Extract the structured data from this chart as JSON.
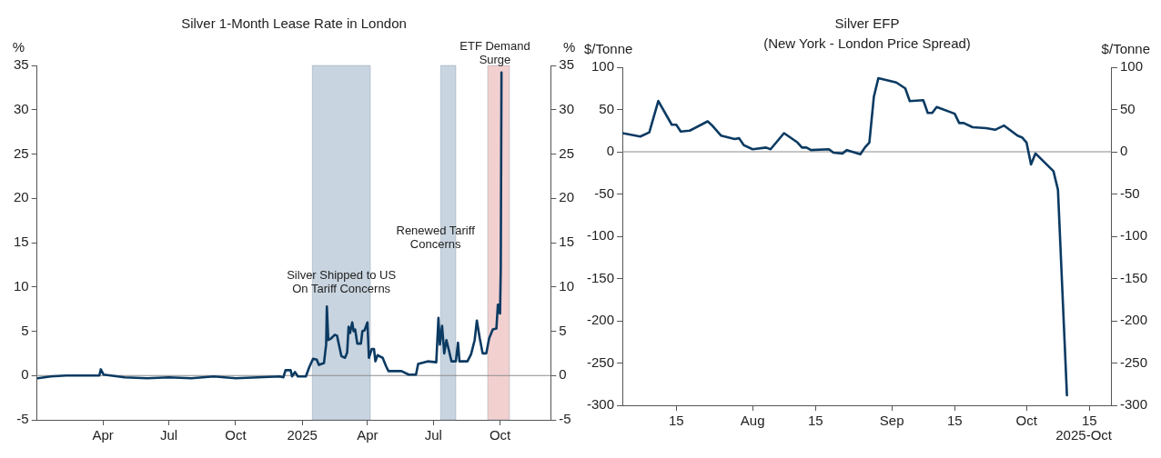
{
  "chart_data": [
    {
      "type": "line",
      "title": "Silver 1-Month Lease Rate in London",
      "ylabel": "%",
      "y2label": "%",
      "x": [
        "2024-01-02",
        "2024-01-20",
        "2024-02-10",
        "2024-03-10",
        "2024-03-27",
        "2024-03-29",
        "2024-04-02",
        "2024-05-01",
        "2024-06-01",
        "2024-07-01",
        "2024-08-01",
        "2024-09-01",
        "2024-10-01",
        "2024-11-01",
        "2024-12-01",
        "2024-12-06",
        "2024-12-09",
        "2024-12-16",
        "2024-12-18",
        "2024-12-22",
        "2024-12-26",
        "2025-01-06",
        "2025-01-11",
        "2025-01-16",
        "2025-01-21",
        "2025-01-24",
        "2025-01-31",
        "2025-02-03",
        "2025-02-04",
        "2025-02-06",
        "2025-02-10",
        "2025-02-15",
        "2025-02-18",
        "2025-02-24",
        "2025-03-01",
        "2025-03-04",
        "2025-03-06",
        "2025-03-08",
        "2025-03-11",
        "2025-03-13",
        "2025-03-15",
        "2025-03-18",
        "2025-03-23",
        "2025-03-25",
        "2025-03-28",
        "2025-04-01",
        "2025-04-03",
        "2025-04-07",
        "2025-04-10",
        "2025-04-12",
        "2025-04-15",
        "2025-04-22",
        "2025-04-27",
        "2025-04-30",
        "2025-05-18",
        "2025-05-28",
        "2025-06-07",
        "2025-06-10",
        "2025-06-23",
        "2025-07-05",
        "2025-07-08",
        "2025-07-10",
        "2025-07-13",
        "2025-07-16",
        "2025-07-19",
        "2025-07-22",
        "2025-07-26",
        "2025-08-01",
        "2025-08-04",
        "2025-08-06",
        "2025-08-17",
        "2025-08-22",
        "2025-08-27",
        "2025-08-30",
        "2025-09-03",
        "2025-09-07",
        "2025-09-12",
        "2025-09-16",
        "2025-09-21",
        "2025-09-26",
        "2025-09-28",
        "2025-09-29",
        "2025-10-01",
        "2025-10-02",
        "2025-10-03"
      ],
      "series": [
        {
          "color": "#0b3a62",
          "values": [
            -0.3,
            -0.1,
            0.0,
            0.0,
            0.0,
            0.7,
            0.1,
            -0.2,
            -0.3,
            -0.2,
            -0.3,
            -0.1,
            -0.3,
            -0.2,
            -0.1,
            -0.2,
            0.6,
            0.6,
            -0.1,
            0.4,
            -0.1,
            -0.1,
            1.0,
            1.9,
            1.8,
            1.2,
            1.4,
            3.5,
            7.8,
            4.0,
            4.2,
            4.6,
            4.5,
            2.2,
            2.0,
            2.6,
            5.5,
            4.8,
            6.0,
            5.0,
            5.2,
            3.6,
            3.6,
            5.0,
            5.1,
            6.0,
            2.0,
            3.0,
            3.0,
            1.6,
            2.3,
            2.0,
            1.0,
            0.5,
            0.5,
            0.1,
            0.1,
            1.3,
            1.6,
            1.5,
            6.5,
            3.5,
            5.6,
            2.5,
            4.0,
            3.0,
            1.6,
            1.6,
            3.7,
            1.6,
            1.6,
            2.4,
            4.0,
            6.2,
            4.2,
            2.5,
            2.5,
            4.2,
            5.2,
            5.3,
            8.0,
            7.2,
            7.0,
            12.0,
            34.2
          ]
        }
      ],
      "xlim": [
        "2024-01-01",
        "2025-12-10"
      ],
      "xticks": [
        {
          "value": "2024-04-01",
          "label": "Apr"
        },
        {
          "value": "2024-07-01",
          "label": "Jul"
        },
        {
          "value": "2024-10-01",
          "label": "Oct"
        },
        {
          "value": "2025-01-01",
          "label": "2025"
        },
        {
          "value": "2025-04-01",
          "label": "Apr"
        },
        {
          "value": "2025-07-01",
          "label": "Jul"
        },
        {
          "value": "2025-10-01",
          "label": "Oct"
        }
      ],
      "ylim": [
        -5,
        35
      ],
      "yticks": [
        -5,
        0,
        5,
        10,
        15,
        20,
        25,
        30,
        35
      ],
      "y2lim": [
        -5,
        35
      ],
      "y2ticks": [
        -5,
        0,
        5,
        10,
        15,
        20,
        25,
        30,
        35
      ],
      "ref_lines": [
        {
          "axis": "y",
          "value": 0,
          "color": "#8c8c8c"
        }
      ],
      "bands": [
        {
          "axis": "x",
          "from": "2025-01-15",
          "to": "2025-04-05",
          "label": "Silver Shipped to US On Tariff Concerns",
          "color": "#c8d4df"
        },
        {
          "axis": "x",
          "from": "2025-07-11",
          "to": "2025-08-01",
          "label": "Renewed Tariff Concerns",
          "color": "#c8d4df"
        },
        {
          "axis": "x",
          "from": "2025-09-14",
          "to": "2025-10-14",
          "label": "ETF Demand Surge",
          "color": "#f2d0d0"
        }
      ],
      "grid": false,
      "legend": false,
      "marker": "none",
      "line_style": "solid"
    },
    {
      "type": "line",
      "title": "Silver EFP",
      "subtitle": "(New York - London Price Spread)",
      "ylabel": "$/Tonne",
      "y2label": "$/Tonne",
      "x": [
        "2025-07-03",
        "2025-07-07",
        "2025-07-09",
        "2025-07-11",
        "2025-07-14",
        "2025-07-15",
        "2025-07-16",
        "2025-07-18",
        "2025-07-22",
        "2025-07-23",
        "2025-07-25",
        "2025-07-28",
        "2025-07-29",
        "2025-07-30",
        "2025-08-01",
        "2025-08-04",
        "2025-08-05",
        "2025-08-08",
        "2025-08-11",
        "2025-08-12",
        "2025-08-13",
        "2025-08-14",
        "2025-08-18",
        "2025-08-19",
        "2025-08-21",
        "2025-08-22",
        "2025-08-25",
        "2025-08-26",
        "2025-08-27",
        "2025-08-28",
        "2025-08-29",
        "2025-09-02",
        "2025-09-04",
        "2025-09-05",
        "2025-09-08",
        "2025-09-09",
        "2025-09-10",
        "2025-09-11",
        "2025-09-15",
        "2025-09-16",
        "2025-09-17",
        "2025-09-19",
        "2025-09-22",
        "2025-09-24",
        "2025-09-26",
        "2025-09-29",
        "2025-09-30",
        "2025-10-01",
        "2025-10-02",
        "2025-10-03",
        "2025-10-07",
        "2025-10-08",
        "2025-10-10"
      ],
      "series": [
        {
          "color": "#0b3a62",
          "values": [
            22,
            18,
            23,
            60,
            32,
            32,
            24,
            25,
            36,
            31,
            19,
            15,
            16,
            8,
            3,
            5,
            3,
            22,
            11,
            5,
            5,
            2,
            3,
            -1,
            -2,
            2,
            -3,
            5,
            11,
            65,
            87,
            82,
            75,
            60,
            61,
            46,
            46,
            53,
            45,
            34,
            34,
            29,
            28,
            26,
            31,
            19,
            17,
            11,
            -15,
            -2,
            -23,
            -45,
            -288
          ]
        }
      ],
      "xlim": [
        "2025-07-03",
        "2025-10-20"
      ],
      "xticks": [
        {
          "value": "2025-07-15",
          "label": "15"
        },
        {
          "value": "2025-08-01",
          "label": "Aug"
        },
        {
          "value": "2025-08-15",
          "label": "15"
        },
        {
          "value": "2025-09-01",
          "label": "Sep"
        },
        {
          "value": "2025-09-15",
          "label": "15"
        },
        {
          "value": "2025-10-01",
          "label": "Oct"
        },
        {
          "value": "2025-10-15",
          "label": "15"
        }
      ],
      "ylim": [
        -300,
        100
      ],
      "yticks": [
        -300,
        -250,
        -200,
        -150,
        -100,
        -50,
        0,
        50,
        100
      ],
      "y2lim": [
        -300,
        100
      ],
      "y2ticks": [
        -300,
        -250,
        -200,
        -150,
        -100,
        -50,
        0,
        50,
        100
      ],
      "ref_lines": [
        {
          "axis": "y",
          "value": 0,
          "color": "#8c8c8c"
        }
      ],
      "annotations": [
        "2025-Oct"
      ],
      "grid": false,
      "legend": false,
      "marker": "none",
      "line_style": "solid"
    }
  ]
}
